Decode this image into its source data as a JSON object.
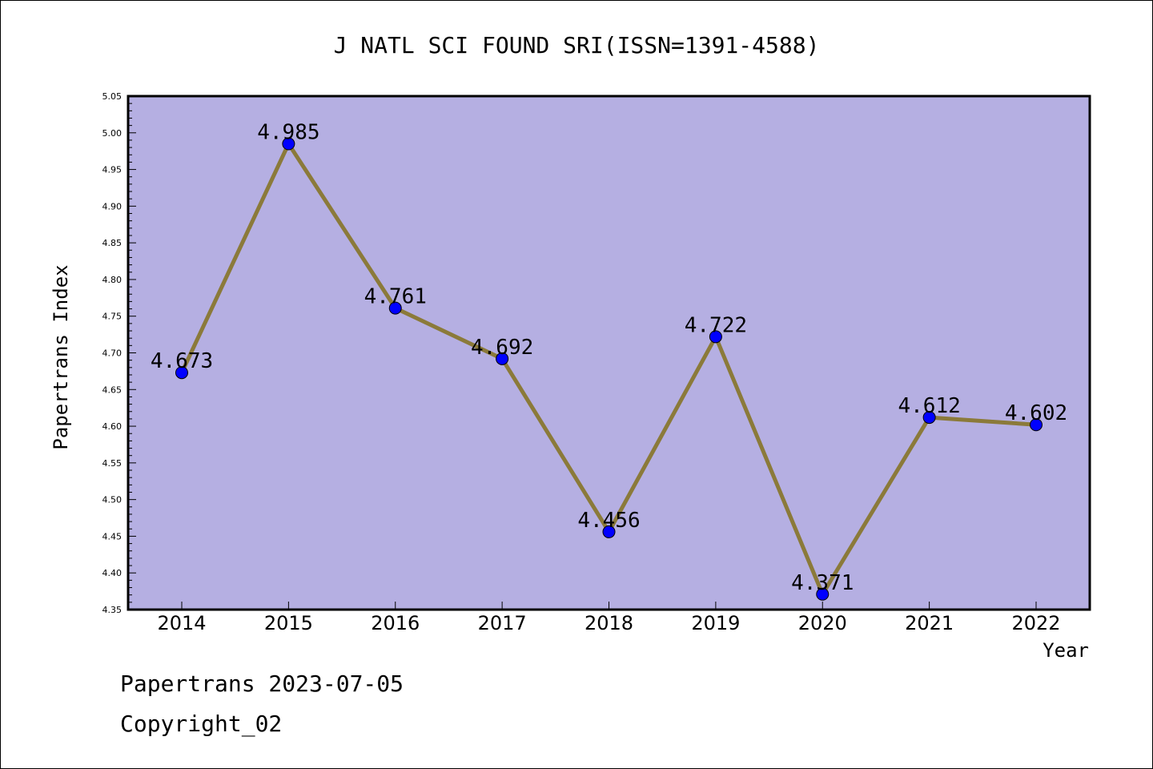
{
  "chart_data": {
    "type": "line",
    "title": "J NATL SCI FOUND SRI(ISSN=1391-4588)",
    "xlabel": "Year",
    "ylabel": "Papertrans Index",
    "categories": [
      "2014",
      "2015",
      "2016",
      "2017",
      "2018",
      "2019",
      "2020",
      "2021",
      "2022"
    ],
    "values": [
      4.673,
      4.985,
      4.761,
      4.692,
      4.456,
      4.722,
      4.371,
      4.612,
      4.602
    ],
    "data_labels": [
      "4.673",
      "4.985",
      "4.761",
      "4.692",
      "4.456",
      "4.722",
      "4.371",
      "4.612",
      "4.602"
    ],
    "ylim": [
      4.35,
      5.05
    ],
    "yticks": [
      "4.35",
      "4.40",
      "4.45",
      "4.50",
      "4.55",
      "4.60",
      "4.65",
      "4.70",
      "4.75",
      "4.80",
      "4.85",
      "4.90",
      "4.95",
      "5.00",
      "5.05"
    ],
    "grid": false,
    "colors": {
      "plot_background": "#b5afe2",
      "line": "#8b7a3a",
      "marker": "#0000ff"
    }
  },
  "footer": {
    "line1": "Papertrans 2023-07-05",
    "line2": "Copyright_02"
  }
}
